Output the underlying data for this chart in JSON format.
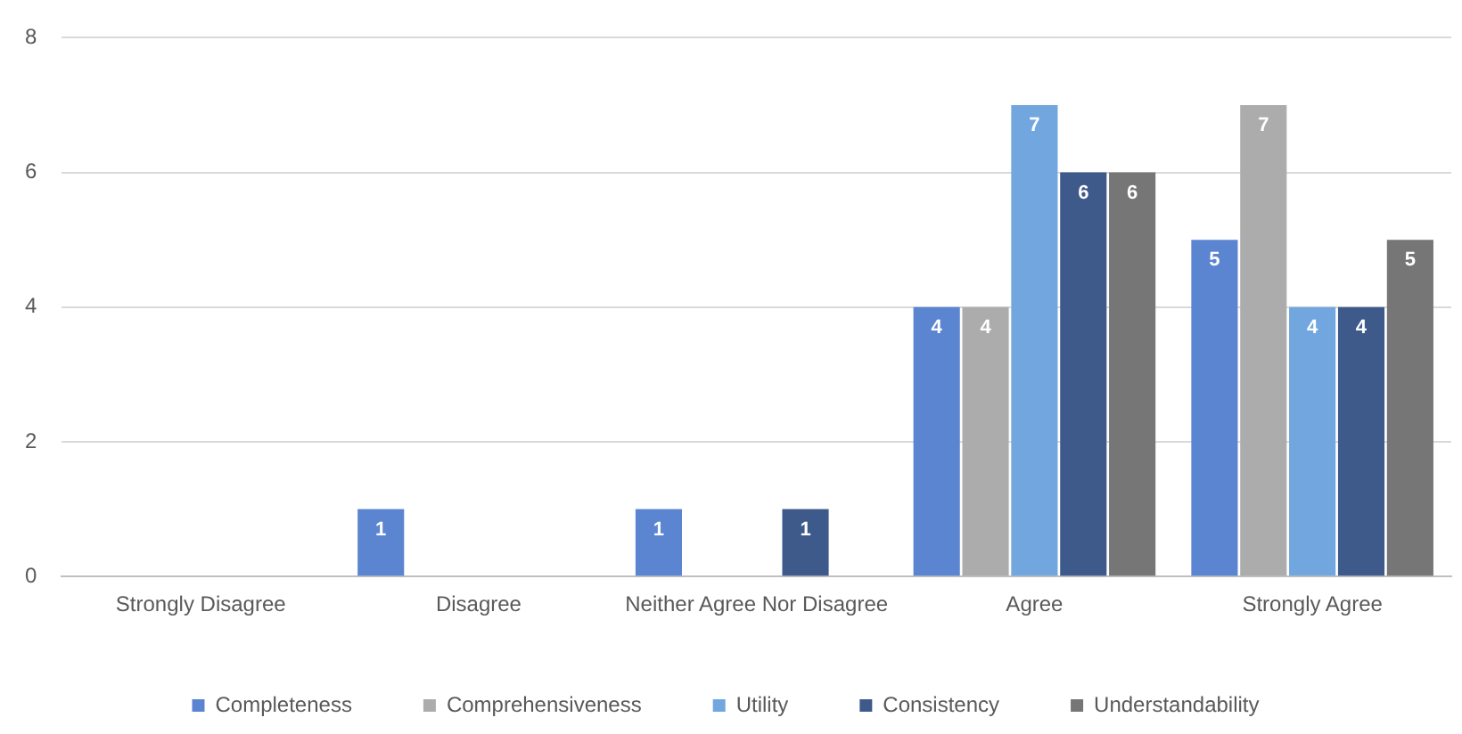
{
  "chart_data": {
    "type": "bar",
    "categories": [
      "Strongly Disagree",
      "Disagree",
      "Neither Agree Nor Disagree",
      "Agree",
      "Strongly Agree"
    ],
    "series": [
      {
        "name": "Completeness",
        "color": "#5b84d1",
        "values": [
          0,
          1,
          1,
          4,
          5
        ],
        "value_labels": [
          null,
          "1",
          "1",
          "4",
          "5"
        ]
      },
      {
        "name": "Comprehensiveness",
        "color": "#acacac",
        "values": [
          0,
          0,
          0,
          4,
          7
        ],
        "value_labels": [
          null,
          null,
          null,
          "4",
          "7"
        ]
      },
      {
        "name": "Utility",
        "color": "#72a6df",
        "values": [
          0,
          0,
          0,
          7,
          4
        ],
        "value_labels": [
          null,
          null,
          null,
          "7",
          "4"
        ]
      },
      {
        "name": "Consistency",
        "color": "#3e5a8a",
        "values": [
          0,
          0,
          1,
          6,
          4
        ],
        "value_labels": [
          null,
          null,
          "1",
          "6",
          "4"
        ]
      },
      {
        "name": "Understandability",
        "color": "#767676",
        "values": [
          0,
          0,
          0,
          6,
          5
        ],
        "value_labels": [
          null,
          null,
          null,
          "6",
          "5"
        ]
      }
    ],
    "ylim": [
      0,
      8
    ],
    "yticks": [
      0,
      2,
      4,
      6,
      8
    ],
    "grid": "y",
    "legend": "bottom"
  }
}
